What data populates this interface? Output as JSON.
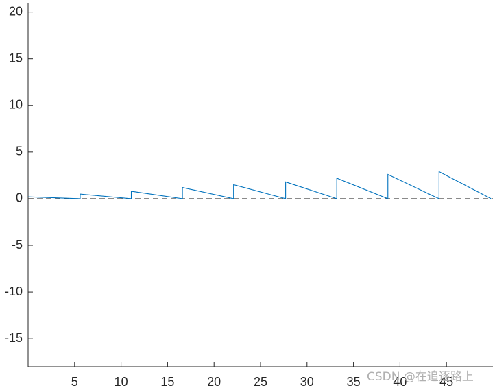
{
  "chart_data": {
    "type": "line",
    "x": [
      0,
      5.6,
      5.6,
      11.1,
      11.1,
      16.6,
      16.6,
      22.1,
      22.1,
      27.7,
      27.7,
      33.2,
      33.2,
      38.7,
      38.7,
      44.2,
      44.2,
      49.8
    ],
    "values": [
      0.2,
      0,
      0.5,
      0,
      0.8,
      0,
      1.2,
      0,
      1.5,
      0,
      1.8,
      0,
      2.2,
      0,
      2.6,
      0,
      2.9,
      0
    ],
    "color": "#0072bd",
    "reference_line": 0,
    "xlim": [
      0,
      50
    ],
    "ylim": [
      -18,
      21
    ],
    "xticks": [
      5,
      10,
      15,
      20,
      25,
      30,
      35,
      40,
      45
    ],
    "yticks": [
      -15,
      -10,
      -5,
      0,
      5,
      10,
      15,
      20
    ],
    "watermark": "CSDN @在追逐路上"
  }
}
